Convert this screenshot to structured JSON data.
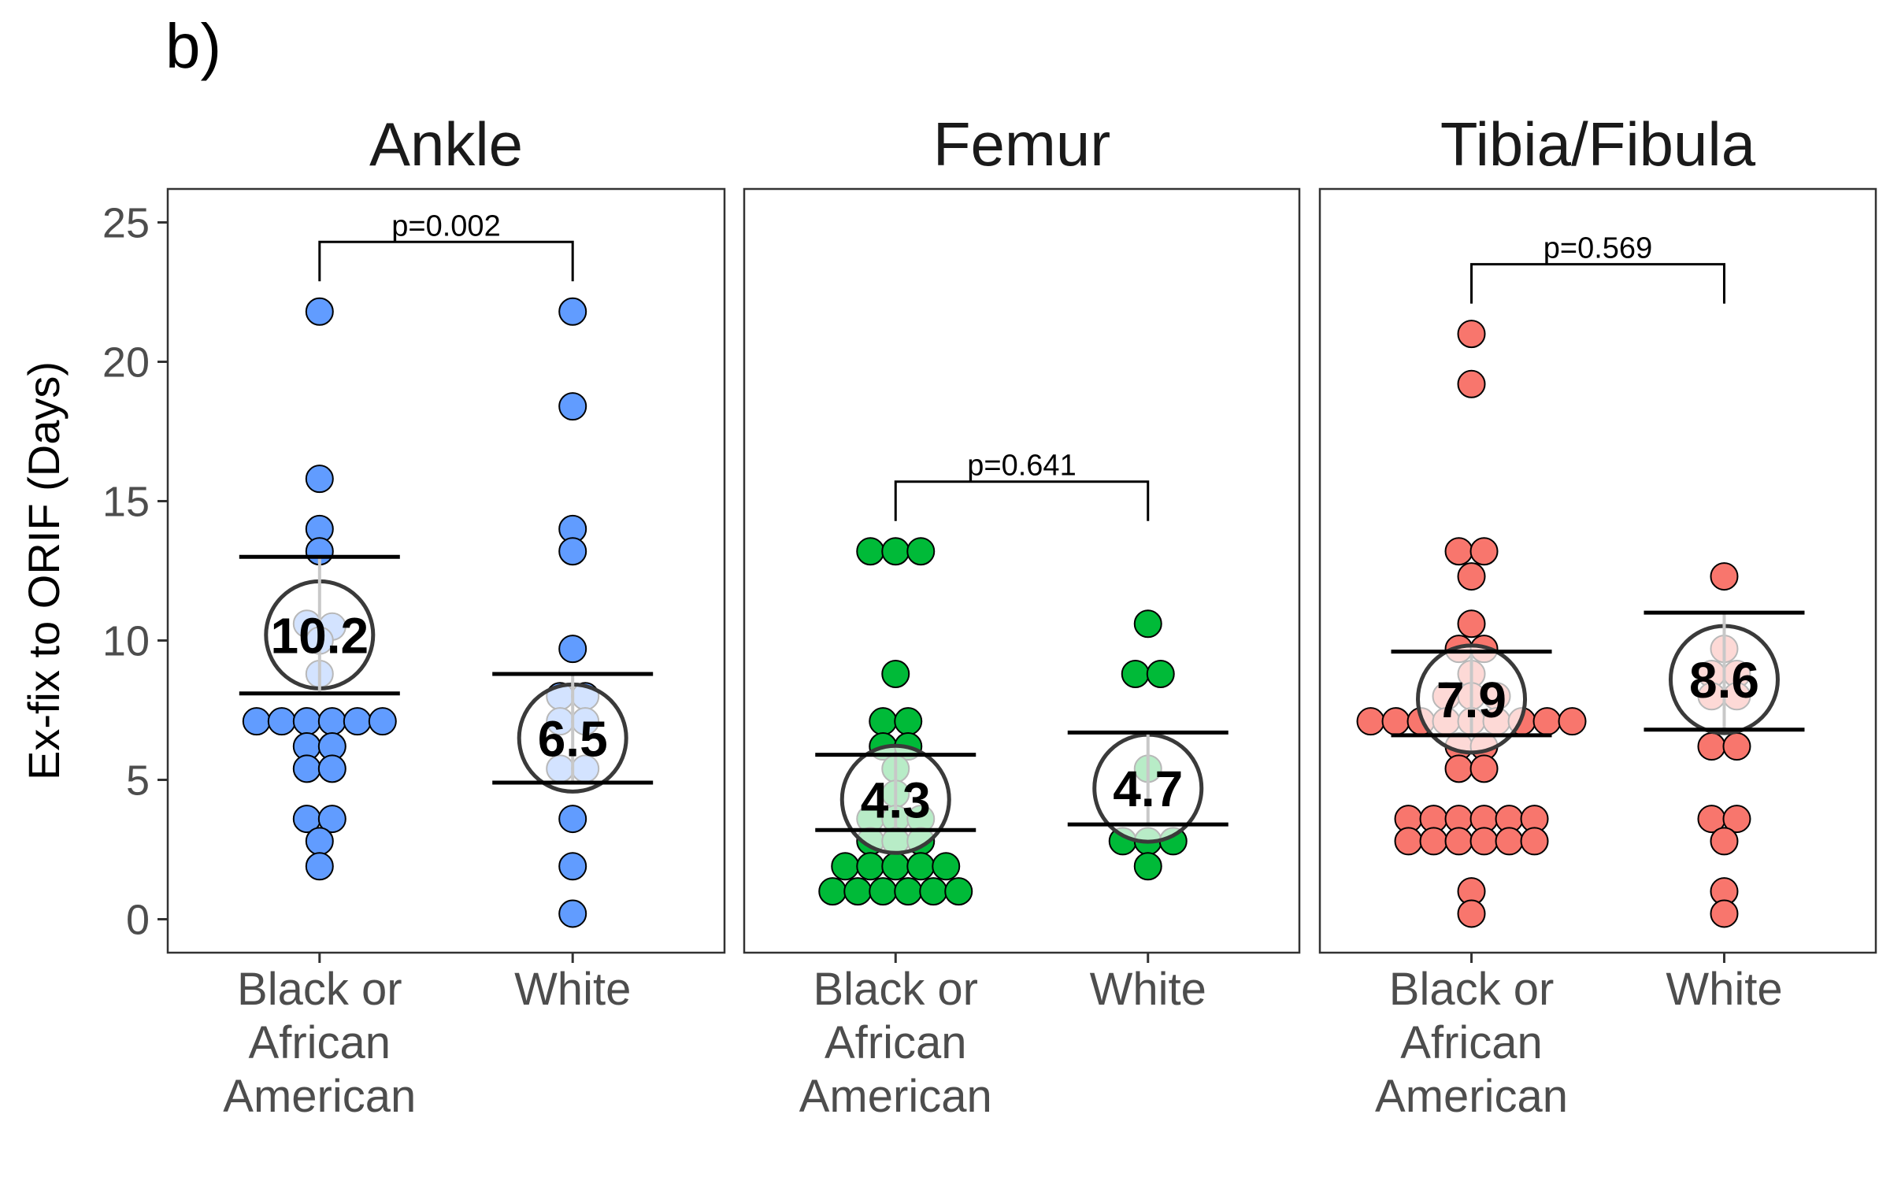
{
  "panel_label": "b)",
  "chart_data": {
    "type": "scatter",
    "style": "dot-plot with mean and 95% CI",
    "ylabel": "Ex-fix to ORIF (Days)",
    "ylim": [
      -1.2,
      26.2
    ],
    "yticks": [
      0,
      5,
      10,
      15,
      20,
      25
    ],
    "grid": false,
    "categories": [
      "Black or African American",
      "White"
    ],
    "category_lines": [
      [
        "Black or",
        "African",
        "American"
      ],
      [
        "White"
      ]
    ],
    "facets": [
      {
        "title": "Ankle",
        "color": "#619CFF",
        "pvalue": "p=0.002",
        "groups": [
          {
            "category": "Black or African American",
            "mean": 10.2,
            "mean_label": "10.2",
            "ci": [
              8.1,
              13.0
            ],
            "values": [
              21.8,
              15.8,
              14.0,
              13.2,
              10.6,
              10.5,
              10.0,
              8.8,
              7.1,
              7.1,
              7.1,
              7.1,
              7.1,
              7.1,
              6.2,
              6.2,
              5.4,
              5.4,
              3.6,
              3.6,
              2.8,
              1.9
            ]
          },
          {
            "category": "White",
            "mean": 6.5,
            "mean_label": "6.5",
            "ci": [
              4.9,
              8.8
            ],
            "values": [
              21.8,
              18.4,
              14.0,
              13.2,
              9.7,
              8.0,
              8.0,
              7.1,
              7.1,
              5.4,
              5.4,
              3.6,
              1.9,
              0.2
            ]
          }
        ]
      },
      {
        "title": "Femur",
        "color": "#00BA38",
        "pvalue": "p=0.641",
        "groups": [
          {
            "category": "Black or African American",
            "mean": 4.3,
            "mean_label": "4.3",
            "ci": [
              3.2,
              5.9
            ],
            "values": [
              13.2,
              13.2,
              13.2,
              8.8,
              7.1,
              7.1,
              6.2,
              6.2,
              5.4,
              4.5,
              3.6,
              3.6,
              3.6,
              2.8,
              2.8,
              2.8,
              1.9,
              1.9,
              1.9,
              1.9,
              1.9,
              1.0,
              1.0,
              1.0,
              1.0,
              1.0,
              1.0
            ]
          },
          {
            "category": "White",
            "mean": 4.7,
            "mean_label": "4.7",
            "ci": [
              3.4,
              6.7
            ],
            "values": [
              10.6,
              8.8,
              8.8,
              5.4,
              2.8,
              2.8,
              2.8,
              1.9
            ]
          }
        ]
      },
      {
        "title": "Tibia/Fibula",
        "color": "#F8766D",
        "pvalue": "p=0.569",
        "groups": [
          {
            "category": "Black or African American",
            "mean": 7.9,
            "mean_label": "7.9",
            "ci": [
              6.6,
              9.6
            ],
            "values": [
              21.0,
              19.2,
              13.2,
              13.2,
              12.3,
              10.6,
              9.7,
              9.7,
              8.8,
              8.0,
              8.0,
              8.0,
              7.1,
              7.1,
              7.1,
              7.1,
              7.1,
              7.1,
              7.1,
              7.1,
              7.1,
              6.2,
              6.2,
              5.4,
              5.4,
              3.6,
              3.6,
              3.6,
              3.6,
              3.6,
              3.6,
              2.8,
              2.8,
              2.8,
              2.8,
              2.8,
              2.8,
              1.0,
              0.2
            ]
          },
          {
            "category": "White",
            "mean": 8.6,
            "mean_label": "8.6",
            "ci": [
              6.8,
              11.0
            ],
            "values": [
              12.3,
              9.7,
              8.8,
              8.8,
              8.0,
              8.0,
              6.2,
              6.2,
              3.6,
              3.6,
              2.8,
              1.0,
              0.2
            ]
          }
        ]
      }
    ]
  }
}
